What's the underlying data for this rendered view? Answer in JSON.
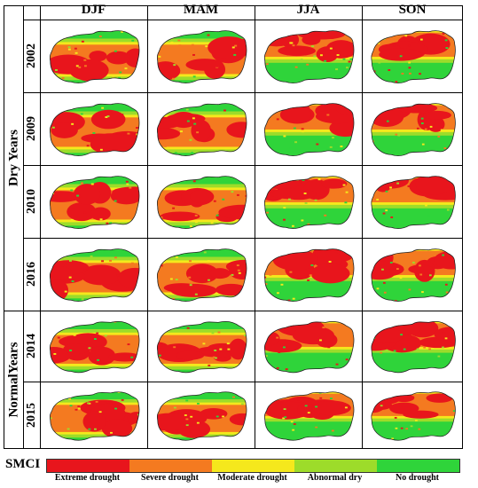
{
  "columns": [
    "DJF",
    "MAM",
    "JJA",
    "SON"
  ],
  "groups": [
    {
      "label": "Dry Years",
      "years": [
        "2002",
        "2009",
        "2010",
        "2016"
      ]
    },
    {
      "label": "NormalYears",
      "years": [
        "2014",
        "2015"
      ]
    }
  ],
  "legend": {
    "title": "SMCI",
    "classes": [
      {
        "label": "Extreme drought",
        "color": "#e8151c"
      },
      {
        "label": "Severe drought",
        "color": "#f47a20"
      },
      {
        "label": "Moderate drought",
        "color": "#f5e81c"
      },
      {
        "label": "Abnormal dry",
        "color": "#9ddc2a"
      },
      {
        "label": "No drought",
        "color": "#2fd43a"
      }
    ]
  }
}
